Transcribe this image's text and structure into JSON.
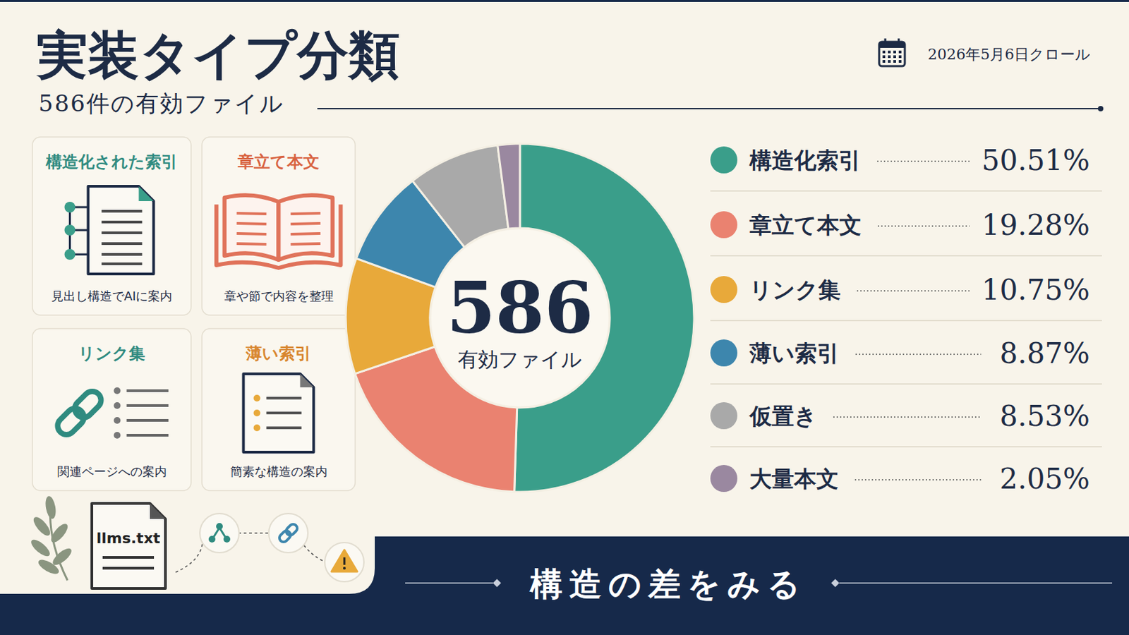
{
  "header": {
    "title": "実装タイプ分類",
    "subtitle": "586件の有効ファイル",
    "date": "2026年5月6日クロール"
  },
  "cards": [
    {
      "title": "構造化された索引",
      "caption": "見出し構造でAIに案内"
    },
    {
      "title": "章立て本文",
      "caption": "章や節で内容を整理"
    },
    {
      "title": "リンク集",
      "caption": "関連ページへの案内"
    },
    {
      "title": "薄い索引",
      "caption": "簡素な構造の案内"
    }
  ],
  "icon_label": "llms.txt",
  "chart_data": {
    "type": "donut",
    "categories": [
      "構造化索引",
      "章立て本文",
      "リンク集",
      "薄い索引",
      "仮置き",
      "大量本文"
    ],
    "values": [
      50.51,
      19.28,
      10.75,
      8.87,
      8.53,
      2.05
    ],
    "value_labels": [
      "50.51%",
      "19.28%",
      "10.75%",
      "8.87%",
      "8.53%",
      "2.05%"
    ],
    "colors": [
      "#3a9e8a",
      "#ea8270",
      "#e8a93a",
      "#3d86ad",
      "#a9a9a9",
      "#9a88a0"
    ],
    "data_labels": true,
    "center_value": 586,
    "center_label": "有効ファイル"
  },
  "footer": "構造の差をみる"
}
